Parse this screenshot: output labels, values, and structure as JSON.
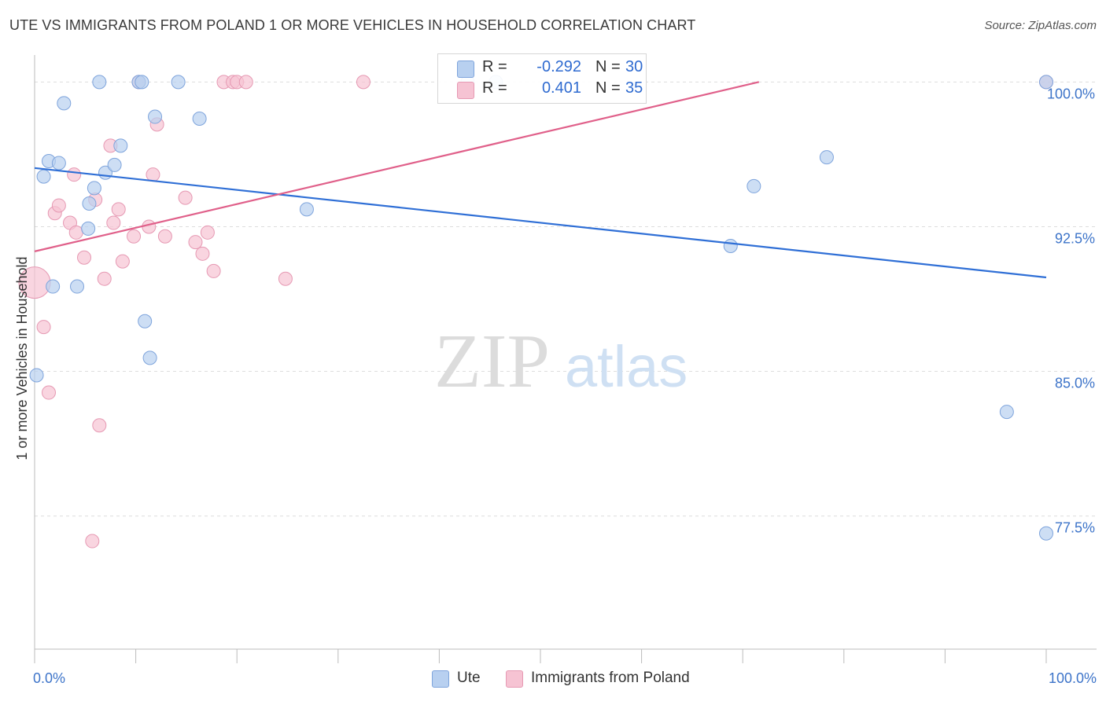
{
  "title": "UTE VS IMMIGRANTS FROM POLAND 1 OR MORE VEHICLES IN HOUSEHOLD CORRELATION CHART",
  "source": "Source: ZipAtlas.com",
  "watermark": {
    "zip": "ZIP",
    "atlas": "atlas"
  },
  "legend_stats": [
    {
      "r_label": "R =",
      "r_value": "-0.292",
      "n_label": "N =",
      "n_value": "30"
    },
    {
      "r_label": "R =",
      "r_value": "0.401",
      "n_label": "N =",
      "n_value": "35"
    }
  ],
  "bottom_legend": [
    "Ute",
    "Immigrants from Poland"
  ],
  "colors": {
    "ute_fill": "#b8d0f0",
    "ute_stroke": "#7ea4dc",
    "ute_line": "#2f6fd6",
    "poland_fill": "#f6c3d3",
    "poland_stroke": "#e699b3",
    "poland_line": "#e0608a",
    "tick_label": "#3d74c9",
    "grid": "#dddddd"
  },
  "chart_data": {
    "type": "scatter",
    "title": "UTE VS IMMIGRANTS FROM POLAND 1 OR MORE VEHICLES IN HOUSEHOLD CORRELATION CHART",
    "xlabel": "",
    "ylabel": "1 or more Vehicles in Household",
    "xlim": [
      0,
      100
    ],
    "ylim": [
      70.6,
      101.4
    ],
    "x_tick_labels": [
      {
        "value": 0,
        "label": "0.0%"
      },
      {
        "value": 100,
        "label": "100.0%"
      }
    ],
    "y_tick_labels": [
      {
        "value": 100.0,
        "label": "100.0%"
      },
      {
        "value": 92.5,
        "label": "92.5%"
      },
      {
        "value": 85.0,
        "label": "85.0%"
      },
      {
        "value": 77.5,
        "label": "77.5%"
      }
    ],
    "grid": true,
    "legend_position": "top-center",
    "series": [
      {
        "name": "Ute",
        "color": "#b8d0f0",
        "points": [
          [
            0.2,
            84.8
          ],
          [
            0.9,
            95.1
          ],
          [
            1.4,
            95.9
          ],
          [
            1.8,
            89.4
          ],
          [
            2.4,
            95.8
          ],
          [
            2.9,
            98.9
          ],
          [
            4.2,
            89.4
          ],
          [
            5.3,
            92.4
          ],
          [
            5.4,
            93.7
          ],
          [
            5.9,
            94.5
          ],
          [
            6.4,
            100.0
          ],
          [
            7.0,
            95.3
          ],
          [
            7.9,
            95.7
          ],
          [
            8.5,
            96.7
          ],
          [
            10.3,
            100.0
          ],
          [
            10.6,
            100.0
          ],
          [
            10.9,
            87.6
          ],
          [
            11.4,
            85.7
          ],
          [
            11.9,
            98.2
          ],
          [
            14.2,
            100.0
          ],
          [
            16.3,
            98.1
          ],
          [
            26.9,
            93.4
          ],
          [
            42.8,
            100.0
          ],
          [
            45.6,
            100.0
          ],
          [
            68.8,
            91.5
          ],
          [
            71.1,
            94.6
          ],
          [
            78.3,
            96.1
          ],
          [
            96.1,
            82.9
          ],
          [
            100.0,
            76.6
          ],
          [
            100.0,
            100.0
          ]
        ]
      },
      {
        "name": "Immigrants from Poland",
        "color": "#f6c3d3",
        "points": [
          [
            0.0,
            89.6
          ],
          [
            0.9,
            87.3
          ],
          [
            1.4,
            83.9
          ],
          [
            2.0,
            93.2
          ],
          [
            2.4,
            93.6
          ],
          [
            3.5,
            92.7
          ],
          [
            3.9,
            95.2
          ],
          [
            4.1,
            92.2
          ],
          [
            4.9,
            90.9
          ],
          [
            5.7,
            76.2
          ],
          [
            6.0,
            93.9
          ],
          [
            6.4,
            82.2
          ],
          [
            6.9,
            89.8
          ],
          [
            7.5,
            96.7
          ],
          [
            7.8,
            92.7
          ],
          [
            8.3,
            93.4
          ],
          [
            8.7,
            90.7
          ],
          [
            9.8,
            92.0
          ],
          [
            10.3,
            100.0
          ],
          [
            11.3,
            92.5
          ],
          [
            11.7,
            95.2
          ],
          [
            12.1,
            97.8
          ],
          [
            12.9,
            92.0
          ],
          [
            14.9,
            94.0
          ],
          [
            15.9,
            91.7
          ],
          [
            16.6,
            91.1
          ],
          [
            17.1,
            92.2
          ],
          [
            17.7,
            90.2
          ],
          [
            18.7,
            100.0
          ],
          [
            19.6,
            100.0
          ],
          [
            20.0,
            100.0
          ],
          [
            20.9,
            100.0
          ],
          [
            24.8,
            89.8
          ],
          [
            32.5,
            100.0
          ],
          [
            100.0,
            100.0
          ]
        ]
      }
    ],
    "trend_lines": [
      {
        "series": "Ute",
        "x": [
          0,
          100
        ],
        "y": [
          95.54,
          89.87
        ]
      },
      {
        "series": "Immigrants from Poland",
        "x": [
          0,
          71.6
        ],
        "y": [
          91.22,
          100.0
        ]
      }
    ]
  }
}
